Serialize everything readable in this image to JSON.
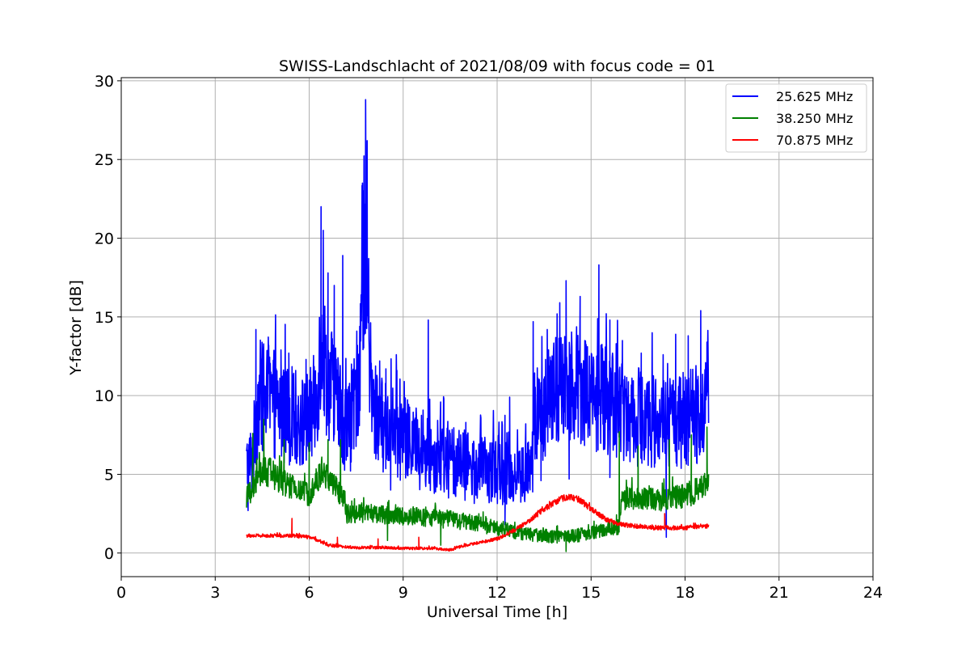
{
  "chart_data": {
    "type": "line",
    "title": "SWISS-Landschlacht of 2021/08/09 with focus code = 01",
    "xlabel": "Universal Time [h]",
    "ylabel": "Y-factor [dB]",
    "xlim": [
      0,
      24
    ],
    "ylim": [
      -1.5,
      30.2
    ],
    "xticks": [
      0,
      3,
      6,
      9,
      12,
      15,
      18,
      21,
      24
    ],
    "yticks": [
      0,
      5,
      10,
      15,
      20,
      25,
      30
    ],
    "grid": true,
    "legend_position": "top-right",
    "series": [
      {
        "name": "25.625 MHz",
        "color": "#0000ff",
        "noise": 2.4,
        "x": [
          4.0,
          4.2,
          4.3,
          4.4,
          4.6,
          4.8,
          5.0,
          5.2,
          5.4,
          5.6,
          5.8,
          6.0,
          6.2,
          6.3,
          6.4,
          6.5,
          6.6,
          6.8,
          7.0,
          7.2,
          7.4,
          7.6,
          7.7,
          7.8,
          7.9,
          8.0,
          8.2,
          8.4,
          8.6,
          8.8,
          9.0,
          9.2,
          9.4,
          9.6,
          9.8,
          10.0,
          10.2,
          10.5,
          10.8,
          11.0,
          11.3,
          11.6,
          12.0,
          12.3,
          12.6,
          12.9,
          13.1,
          13.2,
          13.4,
          13.6,
          13.8,
          14.0,
          14.2,
          14.4,
          14.6,
          14.8,
          15.0,
          15.2,
          15.4,
          15.6,
          15.8,
          16.0,
          16.2,
          16.4,
          16.6,
          16.8,
          17.0,
          17.2,
          17.4,
          17.6,
          17.8,
          18.0,
          18.2,
          18.4,
          18.6,
          18.75
        ],
        "values": [
          5.5,
          6.0,
          8.5,
          10.0,
          9.8,
          9.6,
          9.2,
          9.0,
          8.8,
          8.5,
          8.3,
          8.5,
          9.5,
          11.5,
          14.0,
          12.0,
          11.0,
          10.5,
          9.0,
          8.0,
          8.5,
          12.0,
          17.0,
          21.0,
          14.0,
          9.5,
          8.5,
          8.0,
          7.8,
          7.5,
          7.2,
          7.0,
          6.8,
          6.5,
          6.3,
          6.2,
          6.0,
          5.8,
          5.6,
          5.5,
          5.3,
          5.2,
          5.3,
          5.2,
          5.0,
          5.0,
          5.2,
          8.5,
          9.0,
          9.5,
          10.0,
          10.5,
          10.8,
          11.0,
          10.8,
          10.5,
          10.2,
          10.0,
          9.8,
          9.6,
          9.4,
          9.3,
          9.0,
          8.8,
          8.6,
          8.5,
          8.4,
          8.3,
          8.3,
          8.2,
          8.3,
          8.4,
          8.6,
          9.0,
          9.5,
          9.2
        ],
        "spikes": [
          {
            "x": 4.3,
            "y": 14.2
          },
          {
            "x": 4.7,
            "y": 13.0
          },
          {
            "x": 5.1,
            "y": 12.9
          },
          {
            "x": 5.35,
            "y": 12.7
          },
          {
            "x": 5.9,
            "y": 12.3
          },
          {
            "x": 6.38,
            "y": 22.0
          },
          {
            "x": 6.45,
            "y": 20.5
          },
          {
            "x": 6.6,
            "y": 17.8
          },
          {
            "x": 6.8,
            "y": 17.0
          },
          {
            "x": 7.07,
            "y": 18.9
          },
          {
            "x": 7.35,
            "y": 12.0
          },
          {
            "x": 7.7,
            "y": 23.5
          },
          {
            "x": 7.8,
            "y": 28.8
          },
          {
            "x": 7.85,
            "y": 26.2
          },
          {
            "x": 8.25,
            "y": 12.2
          },
          {
            "x": 8.45,
            "y": 11.7
          },
          {
            "x": 8.8,
            "y": 11.6
          },
          {
            "x": 9.8,
            "y": 14.8
          },
          {
            "x": 10.3,
            "y": 9.8
          },
          {
            "x": 11.0,
            "y": 8.3
          },
          {
            "x": 12.4,
            "y": 9.9
          },
          {
            "x": 13.15,
            "y": 14.7
          },
          {
            "x": 13.6,
            "y": 14.2
          },
          {
            "x": 14.0,
            "y": 15.9
          },
          {
            "x": 14.2,
            "y": 17.3
          },
          {
            "x": 14.65,
            "y": 16.3
          },
          {
            "x": 15.25,
            "y": 18.3
          },
          {
            "x": 15.6,
            "y": 14.8
          },
          {
            "x": 16.0,
            "y": 13.5
          },
          {
            "x": 16.6,
            "y": 12.7
          },
          {
            "x": 17.3,
            "y": 12.6
          },
          {
            "x": 17.7,
            "y": 13.9
          },
          {
            "x": 18.1,
            "y": 13.8
          },
          {
            "x": 18.5,
            "y": 15.4
          },
          {
            "x": 18.7,
            "y": 13.4
          }
        ],
        "dips": [
          {
            "x": 4.05,
            "y": 2.7
          },
          {
            "x": 8.6,
            "y": 4.0
          },
          {
            "x": 10.2,
            "y": 4.0
          },
          {
            "x": 12.25,
            "y": 1.8
          },
          {
            "x": 13.4,
            "y": 4.6
          },
          {
            "x": 14.3,
            "y": 4.7
          },
          {
            "x": 15.6,
            "y": 4.8
          },
          {
            "x": 17.4,
            "y": 1.0
          }
        ]
      },
      {
        "name": "38.250 MHz",
        "color": "#008000",
        "noise": 1.1,
        "x": [
          4.0,
          4.2,
          4.4,
          4.6,
          4.8,
          5.0,
          5.2,
          5.4,
          5.6,
          5.8,
          6.0,
          6.2,
          6.4,
          6.6,
          6.8,
          7.0,
          7.1,
          7.2,
          7.5,
          8.0,
          8.5,
          9.0,
          9.5,
          10.0,
          10.5,
          11.0,
          11.5,
          12.0,
          12.5,
          13.0,
          13.5,
          14.0,
          14.5,
          15.0,
          15.5,
          15.9,
          16.0,
          16.4,
          16.8,
          17.2,
          17.6,
          18.0,
          18.4,
          18.75
        ],
        "values": [
          3.5,
          4.0,
          5.0,
          5.2,
          5.0,
          4.8,
          4.5,
          4.2,
          4.0,
          3.8,
          3.8,
          4.5,
          5.0,
          4.8,
          4.2,
          3.8,
          3.5,
          2.5,
          2.5,
          2.5,
          2.4,
          2.3,
          2.3,
          2.2,
          2.1,
          2.0,
          1.8,
          1.6,
          1.4,
          1.2,
          1.1,
          1.0,
          1.1,
          1.3,
          1.5,
          1.7,
          3.5,
          3.5,
          3.4,
          3.4,
          3.5,
          3.6,
          4.0,
          4.8
        ],
        "spikes": [
          {
            "x": 4.2,
            "y": 7.6
          },
          {
            "x": 4.55,
            "y": 8.5
          },
          {
            "x": 5.2,
            "y": 7.2
          },
          {
            "x": 6.0,
            "y": 7.0
          },
          {
            "x": 6.6,
            "y": 7.2
          },
          {
            "x": 7.0,
            "y": 7.2
          },
          {
            "x": 15.9,
            "y": 7.7
          },
          {
            "x": 16.5,
            "y": 6.8
          },
          {
            "x": 17.5,
            "y": 7.2
          },
          {
            "x": 18.2,
            "y": 7.5
          },
          {
            "x": 18.7,
            "y": 8.0
          }
        ],
        "dips": [
          {
            "x": 8.5,
            "y": 0.8
          },
          {
            "x": 10.2,
            "y": 0.5
          },
          {
            "x": 14.2,
            "y": 0.1
          }
        ]
      },
      {
        "name": "70.875 MHz",
        "color": "#ff0000",
        "noise": 0.3,
        "x": [
          4.0,
          4.5,
          5.0,
          5.5,
          6.0,
          6.3,
          6.6,
          7.0,
          7.5,
          8.0,
          8.5,
          9.0,
          9.5,
          10.0,
          10.5,
          11.0,
          11.5,
          12.0,
          12.5,
          13.0,
          13.5,
          14.0,
          14.3,
          14.6,
          15.0,
          15.5,
          16.0,
          16.5,
          17.0,
          17.5,
          18.0,
          18.5,
          18.75
        ],
        "values": [
          1.1,
          1.1,
          1.1,
          1.1,
          1.0,
          0.8,
          0.5,
          0.4,
          0.35,
          0.35,
          0.35,
          0.3,
          0.3,
          0.3,
          0.2,
          0.5,
          0.7,
          0.9,
          1.4,
          2.0,
          2.8,
          3.4,
          3.6,
          3.4,
          2.8,
          2.1,
          1.8,
          1.7,
          1.6,
          1.6,
          1.6,
          1.7,
          1.7
        ],
        "spikes": [
          {
            "x": 5.45,
            "y": 2.2
          },
          {
            "x": 6.9,
            "y": 1.0
          },
          {
            "x": 8.2,
            "y": 0.9
          },
          {
            "x": 9.5,
            "y": 1.0
          },
          {
            "x": 17.35,
            "y": 2.5
          }
        ],
        "dips": []
      }
    ]
  }
}
